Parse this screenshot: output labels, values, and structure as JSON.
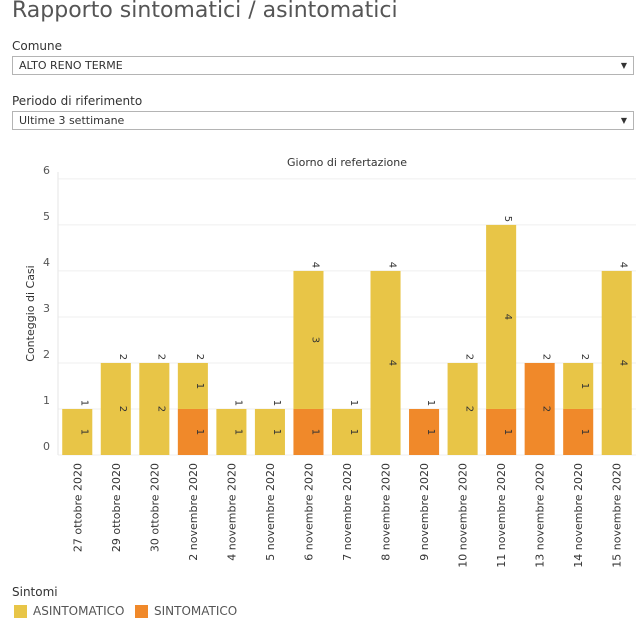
{
  "page": {
    "title": "Rapporto sintomatici / asintomatici"
  },
  "filters": {
    "comune_label": "Comune",
    "comune_value": "ALTO RENO TERME",
    "periodo_label": "Periodo di riferimento",
    "periodo_value": "Ultime 3 settimane",
    "arrow_icon": "triangle-down-icon"
  },
  "legend": {
    "title": "Sintomi",
    "items": [
      {
        "label": "ASINTOMATICO",
        "color": "#e8c547"
      },
      {
        "label": "SINTOMATICO",
        "color": "#f0892a"
      }
    ]
  },
  "chart_data": {
    "type": "bar",
    "stacked": true,
    "title": "Giorno di refertazione",
    "xlabel": "",
    "ylabel": "Conteggio di Casi",
    "ylim": [
      0,
      6
    ],
    "yticks": [
      0,
      1,
      2,
      3,
      4,
      5,
      6
    ],
    "grid": true,
    "categories": [
      "27 ottobre 2020",
      "29 ottobre 2020",
      "30 ottobre 2020",
      "2 novembre 2020",
      "4 novembre 2020",
      "5 novembre 2020",
      "6 novembre 2020",
      "7 novembre 2020",
      "8 novembre 2020",
      "9 novembre 2020",
      "10 novembre 2020",
      "11 novembre 2020",
      "13 novembre 2020",
      "14 novembre 2020",
      "15 novembre 2020"
    ],
    "series": [
      {
        "name": "SINTOMATICO",
        "color": "#f0892a",
        "values": [
          0,
          0,
          0,
          1,
          0,
          0,
          1,
          0,
          0,
          1,
          0,
          1,
          2,
          1,
          0
        ]
      },
      {
        "name": "ASINTOMATICO",
        "color": "#e8c547",
        "values": [
          1,
          2,
          2,
          1,
          1,
          1,
          3,
          1,
          4,
          0,
          2,
          4,
          0,
          1,
          4
        ]
      }
    ]
  }
}
